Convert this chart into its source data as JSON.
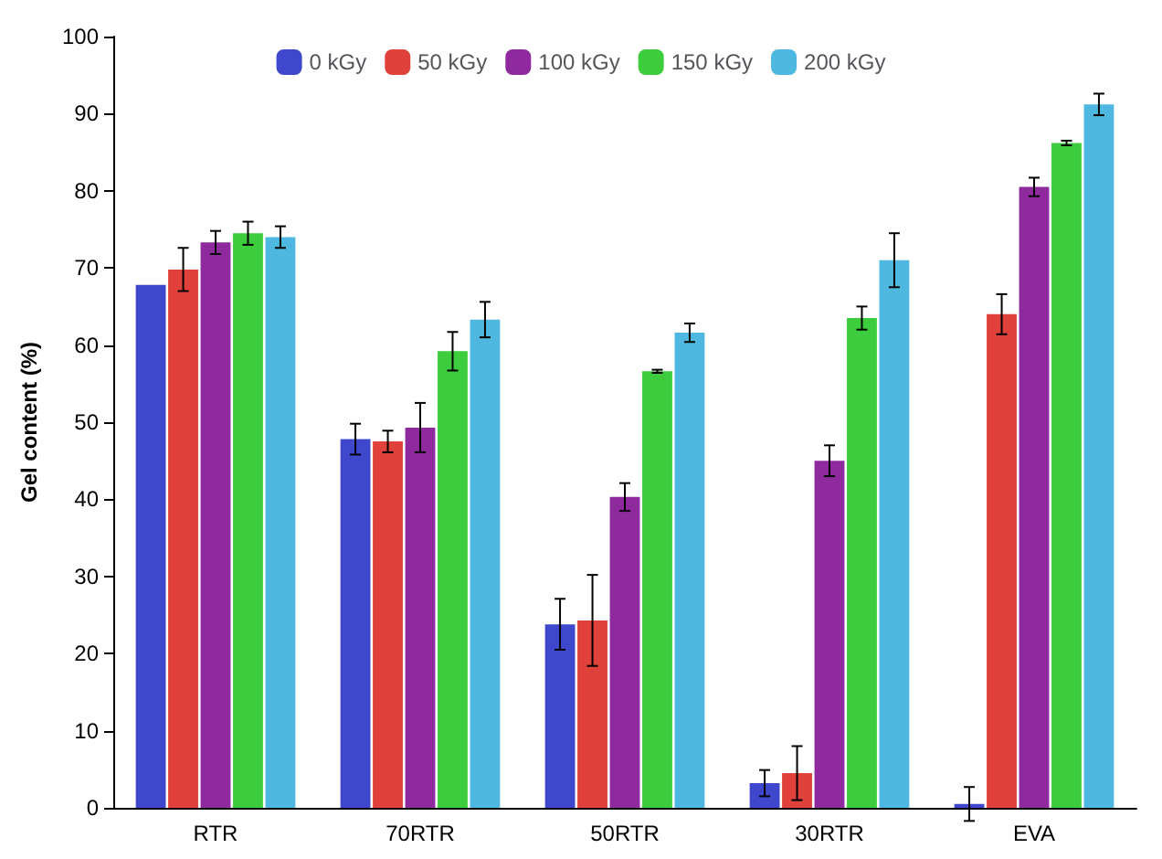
{
  "chart_data": {
    "type": "bar",
    "ylabel": "Gel content (%)",
    "categories": [
      "RTR",
      "70RTR",
      "50RTR",
      "30RTR",
      "EVA"
    ],
    "series": [
      {
        "name": "0 kGy",
        "color": "#3f48cc",
        "values": [
          67.8,
          47.8,
          23.8,
          3.2,
          0.5
        ],
        "errors": [
          null,
          2.0,
          3.3,
          1.7,
          2.2
        ]
      },
      {
        "name": "50 kGy",
        "color": "#e0413a",
        "values": [
          69.8,
          47.5,
          24.3,
          4.5,
          64.0
        ],
        "errors": [
          2.8,
          1.4,
          5.9,
          3.5,
          2.6
        ]
      },
      {
        "name": "100 kGy",
        "color": "#8e2a9e",
        "values": [
          73.3,
          49.3,
          40.3,
          45.0,
          80.5
        ],
        "errors": [
          1.5,
          3.2,
          1.8,
          2.0,
          1.2
        ]
      },
      {
        "name": "150 kGy",
        "color": "#3dcc3d",
        "values": [
          74.5,
          59.2,
          56.6,
          63.5,
          86.2
        ],
        "errors": [
          1.5,
          2.5,
          0.2,
          1.5,
          0.3
        ]
      },
      {
        "name": "200 kGy",
        "color": "#4fb8e0",
        "values": [
          74.0,
          63.3,
          61.6,
          71.0,
          91.2
        ],
        "errors": [
          1.4,
          2.3,
          1.2,
          3.5,
          1.4
        ]
      }
    ],
    "ylim": [
      0,
      100
    ],
    "yticks": [
      0,
      10,
      20,
      30,
      40,
      50,
      60,
      70,
      80,
      90,
      100
    ],
    "grid": false,
    "legend": "top"
  }
}
